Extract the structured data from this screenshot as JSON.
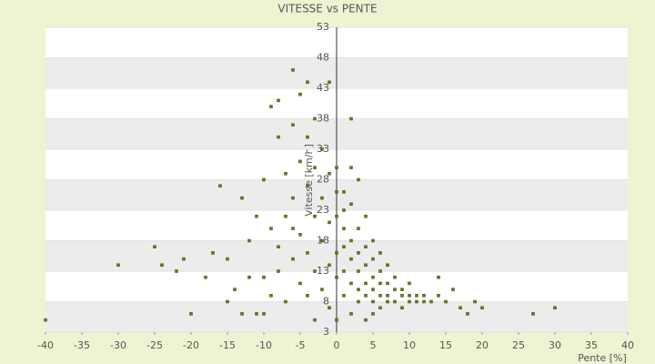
{
  "chart_data": {
    "type": "scatter",
    "title": "VITESSE vs PENTE",
    "x_label": "Pente [%]",
    "y_label": "Vitesse [km/h]",
    "color": "#6b7a1a",
    "grid": true,
    "xlim": [
      -40,
      40
    ],
    "xticks": [
      -40,
      -35,
      -30,
      -25,
      -20,
      -15,
      -10,
      -5,
      0,
      5,
      10,
      15,
      20,
      25,
      30,
      35,
      40
    ],
    "ylim": [
      3,
      53
    ],
    "yticks": [
      53,
      48,
      43,
      38,
      33,
      28,
      23,
      18,
      13,
      8,
      3
    ],
    "x": [
      -40,
      -30,
      -25,
      -24,
      -21,
      -20,
      -22,
      -18,
      -17,
      -16,
      -15,
      -14,
      -13,
      -13,
      -12,
      -11,
      -11,
      -10,
      -10,
      -10,
      -9,
      -9,
      -9,
      -8,
      -8,
      -8,
      -7,
      -7,
      -7,
      -6,
      -6,
      -6,
      -6,
      -5,
      -5,
      -5,
      -5,
      -4,
      -4,
      -4,
      -4,
      -3,
      -3,
      -3,
      -3,
      -2,
      -2,
      -2,
      -2,
      -1,
      -1,
      -1,
      -1,
      -1,
      0,
      0,
      0,
      0,
      0,
      1,
      1,
      1,
      1,
      1,
      2,
      2,
      2,
      2,
      2,
      2,
      3,
      3,
      3,
      3,
      3,
      3,
      4,
      4,
      4,
      4,
      4,
      4,
      5,
      5,
      5,
      5,
      5,
      6,
      6,
      6,
      6,
      6,
      7,
      7,
      7,
      7,
      8,
      8,
      8,
      9,
      9,
      9,
      10,
      10,
      10,
      11,
      11,
      12,
      12,
      13,
      14,
      14,
      15,
      16,
      17,
      18,
      19,
      20,
      27,
      30,
      -8,
      -4,
      0,
      1,
      -6,
      -12,
      -15,
      -3,
      5,
      2
    ],
    "y": [
      5,
      14,
      17,
      14,
      15,
      6,
      13,
      12,
      16,
      27,
      15,
      10,
      25,
      6,
      18,
      22,
      6,
      28,
      12,
      6,
      40,
      20,
      9,
      35,
      17,
      13,
      29,
      22,
      8,
      46,
      37,
      25,
      15,
      42,
      31,
      19,
      11,
      35,
      27,
      16,
      9,
      38,
      30,
      22,
      13,
      33,
      25,
      18,
      10,
      44,
      29,
      21,
      14,
      7,
      30,
      22,
      16,
      12,
      5,
      26,
      20,
      17,
      13,
      9,
      38,
      24,
      18,
      15,
      11,
      6,
      28,
      20,
      16,
      13,
      10,
      8,
      22,
      17,
      14,
      11,
      9,
      5,
      18,
      15,
      12,
      10,
      8,
      16,
      13,
      11,
      9,
      7,
      14,
      11,
      9,
      8,
      12,
      10,
      8,
      10,
      9,
      7,
      11,
      9,
      8,
      9,
      8,
      8,
      9,
      8,
      9,
      12,
      8,
      10,
      7,
      6,
      8,
      7,
      6,
      7,
      41,
      44,
      26,
      23,
      20,
      12,
      8,
      5,
      6,
      30
    ]
  }
}
